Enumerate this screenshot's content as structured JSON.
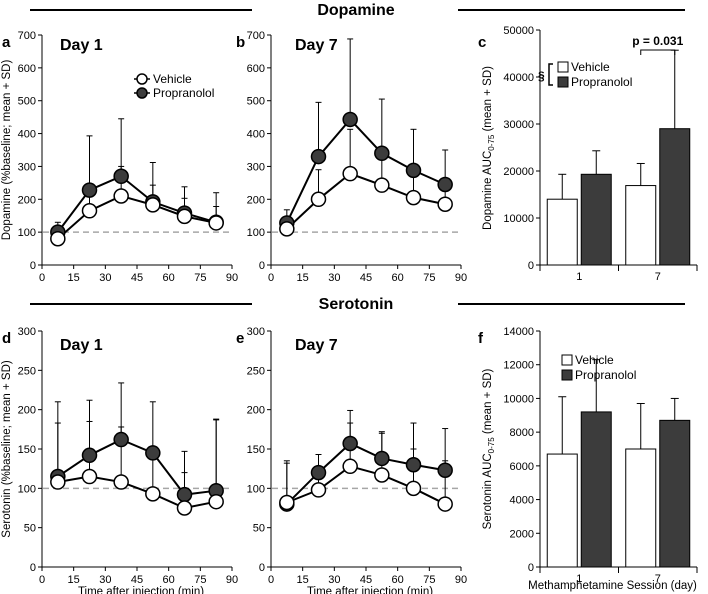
{
  "sections": {
    "dopamine_title": "Dopamine",
    "serotonin_title": "Serotonin"
  },
  "legend": {
    "vehicle": "Vehicle",
    "propranolol": "Propranolol",
    "significance_symbol": "§"
  },
  "colors": {
    "vehicle_fill": "#ffffff",
    "propranolol_fill": "#3c3c3c",
    "baseline_dash": "#a6a6a6",
    "axis": "#000000"
  },
  "chart_data": [
    {
      "id": "a",
      "panel_label": "a",
      "type": "line",
      "title": "Day 1",
      "xlabel": "",
      "ylabel": "Dopamine (%baseline; mean + SD)",
      "xlim": [
        0,
        90
      ],
      "xticks": [
        0,
        15,
        30,
        45,
        60,
        75,
        90
      ],
      "ylim": [
        0,
        700
      ],
      "yticks": [
        0,
        100,
        200,
        300,
        400,
        500,
        600,
        700
      ],
      "baseline": 100,
      "show_legend": true,
      "x": [
        7.5,
        22.5,
        37.5,
        52.5,
        67.5,
        82.5
      ],
      "series": [
        {
          "name": "Vehicle",
          "values": [
            80,
            165,
            210,
            183,
            148,
            128
          ],
          "sd": [
            20,
            45,
            90,
            60,
            55,
            50
          ]
        },
        {
          "name": "Propranolol",
          "values": [
            100,
            228,
            270,
            192,
            158,
            130
          ],
          "sd": [
            30,
            165,
            175,
            120,
            80,
            90
          ]
        }
      ]
    },
    {
      "id": "b",
      "panel_label": "b",
      "type": "line",
      "title": "Day 7",
      "xlabel": "",
      "ylabel": "",
      "xlim": [
        0,
        90
      ],
      "xticks": [
        0,
        15,
        30,
        45,
        60,
        75,
        90
      ],
      "ylim": [
        0,
        700
      ],
      "yticks": [
        0,
        100,
        200,
        300,
        400,
        500,
        600,
        700
      ],
      "baseline": 100,
      "show_legend": false,
      "x": [
        7.5,
        22.5,
        37.5,
        52.5,
        67.5,
        82.5
      ],
      "series": [
        {
          "name": "Vehicle",
          "values": [
            110,
            200,
            278,
            243,
            205,
            185
          ],
          "sd": [
            15,
            90,
            135,
            110,
            85,
            70
          ]
        },
        {
          "name": "Propranolol",
          "values": [
            128,
            330,
            443,
            340,
            288,
            245
          ],
          "sd": [
            40,
            165,
            245,
            165,
            125,
            105
          ]
        }
      ]
    },
    {
      "id": "c",
      "panel_label": "c",
      "type": "bar",
      "title": "",
      "xlabel": "",
      "ylabel": "Dopamine AUC",
      "ylabel_subscript": "0-75",
      "ylabel_suffix": " (mean + SD)",
      "categories": [
        "1",
        "7"
      ],
      "ylim": [
        0,
        50000
      ],
      "yticks": [
        0,
        10000,
        20000,
        30000,
        40000,
        50000
      ],
      "show_legend": true,
      "legend_mark": "§",
      "annotation": "p = 0.031",
      "series": [
        {
          "name": "Vehicle",
          "values": [
            14000,
            16900
          ],
          "sd": [
            5300,
            4700
          ]
        },
        {
          "name": "Propranolol",
          "values": [
            19300,
            29000
          ],
          "sd": [
            5000,
            16700
          ]
        }
      ]
    },
    {
      "id": "d",
      "panel_label": "d",
      "type": "line",
      "title": "Day 1",
      "xlabel": "Time after injection (min)",
      "ylabel": "Serotonin (%baseline; mean + SD)",
      "xlim": [
        0,
        90
      ],
      "xticks": [
        0,
        15,
        30,
        45,
        60,
        75,
        90
      ],
      "ylim": [
        0,
        300
      ],
      "yticks": [
        0,
        50,
        100,
        150,
        200,
        250,
        300
      ],
      "baseline": 100,
      "show_legend": false,
      "x": [
        7.5,
        22.5,
        37.5,
        52.5,
        67.5,
        82.5
      ],
      "series": [
        {
          "name": "Vehicle",
          "values": [
            108,
            115,
            108,
            93,
            75,
            83
          ],
          "sd": [
            75,
            70,
            70,
            55,
            45,
            105
          ]
        },
        {
          "name": "Propranolol",
          "values": [
            115,
            142,
            162,
            145,
            92,
            97
          ],
          "sd": [
            95,
            70,
            72,
            65,
            55,
            90
          ]
        }
      ]
    },
    {
      "id": "e",
      "panel_label": "e",
      "type": "line",
      "title": "Day 7",
      "xlabel": "Time after injection (min)",
      "ylabel": "",
      "xlim": [
        0,
        90
      ],
      "xticks": [
        0,
        15,
        30,
        45,
        60,
        75,
        90
      ],
      "ylim": [
        0,
        300
      ],
      "yticks": [
        0,
        50,
        100,
        150,
        200,
        250,
        300
      ],
      "baseline": 100,
      "show_legend": false,
      "x": [
        7.5,
        22.5,
        37.5,
        52.5,
        67.5,
        82.5
      ],
      "series": [
        {
          "name": "Vehicle",
          "values": [
            82,
            98,
            128,
            117,
            100,
            80
          ],
          "sd": [
            50,
            45,
            55,
            55,
            50,
            55
          ]
        },
        {
          "name": "Propranolol",
          "values": [
            80,
            120,
            157,
            138,
            130,
            123
          ],
          "sd": [
            55,
            23,
            42,
            32,
            53,
            53
          ]
        }
      ]
    },
    {
      "id": "f",
      "panel_label": "f",
      "type": "bar",
      "title": "",
      "xlabel": "Methamphetamine Session (day)",
      "ylabel": "Serotonin AUC",
      "ylabel_subscript": "0-75",
      "ylabel_suffix": " (mean + SD)",
      "categories": [
        "1",
        "7"
      ],
      "ylim": [
        0,
        14000
      ],
      "yticks": [
        0,
        2000,
        4000,
        6000,
        8000,
        10000,
        12000,
        14000
      ],
      "show_legend": true,
      "legend_mark": "",
      "annotation": "",
      "series": [
        {
          "name": "Vehicle",
          "values": [
            6700,
            7000
          ],
          "sd": [
            3400,
            2700
          ]
        },
        {
          "name": "Propranolol",
          "values": [
            9200,
            8700
          ],
          "sd": [
            3100,
            1300
          ]
        }
      ]
    }
  ]
}
